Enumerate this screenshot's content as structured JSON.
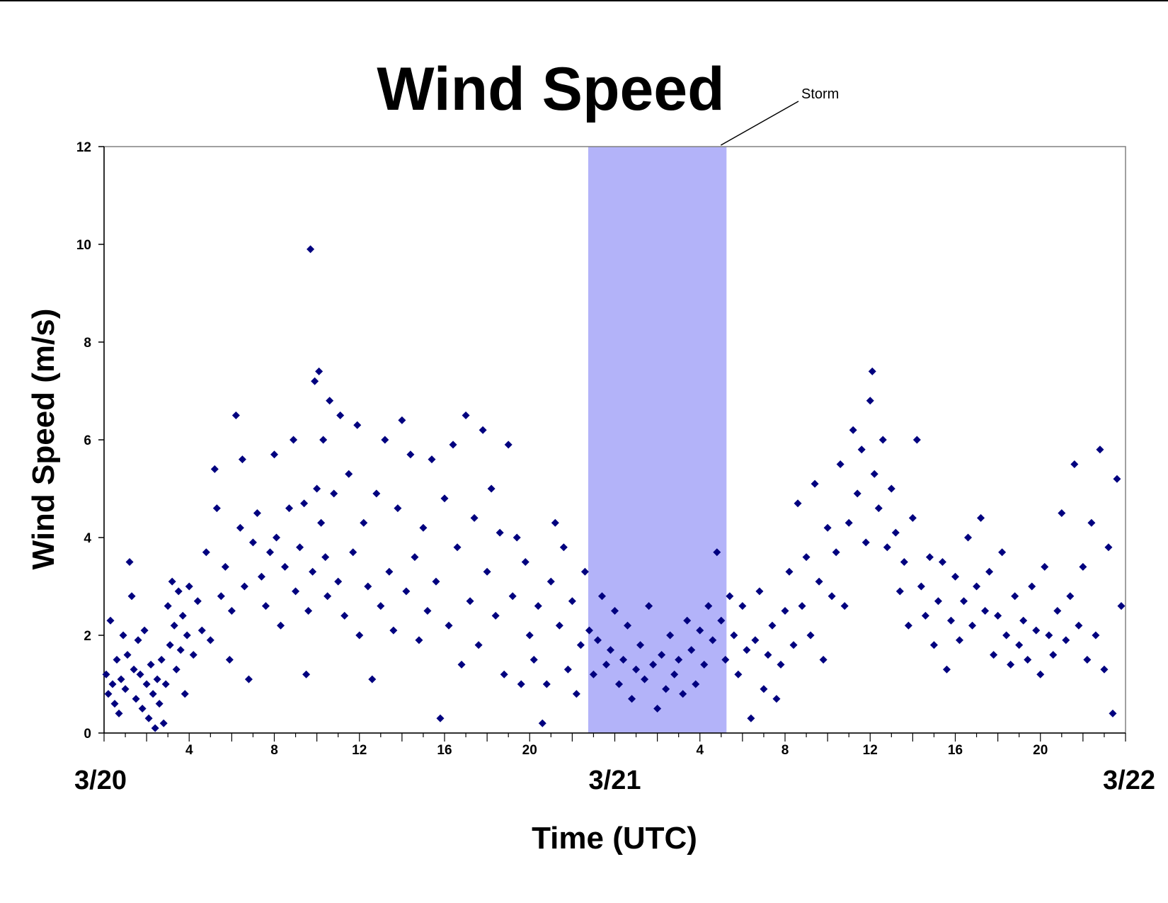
{
  "chart_data": {
    "type": "scatter",
    "title": "Wind Speed",
    "xlabel": "Time (UTC)",
    "ylabel": "Wind Speed (m/s)",
    "x_unit": "hours UTC",
    "x_range_hours": [
      0,
      48
    ],
    "ylim": [
      0,
      12
    ],
    "yticks": [
      "0",
      "2",
      "4",
      "6",
      "8",
      "10",
      "12"
    ],
    "xticks": [
      "4",
      "8",
      "12",
      "16",
      "20",
      "4",
      "8",
      "12",
      "16",
      "20"
    ],
    "date_labels": [
      "3/20",
      "3/21",
      "3/22"
    ],
    "grid": false,
    "legend": "none",
    "marker_color": "#00007f",
    "storm_band_color": "#b3b3f9",
    "annotation": {
      "text": "Storm",
      "x_start_hour": 22.75,
      "x_end_hour": 29.25
    },
    "series": [
      {
        "marker": "diamond",
        "points": [
          [
            0.1,
            1.2
          ],
          [
            0.2,
            0.8
          ],
          [
            0.3,
            2.3
          ],
          [
            0.4,
            1.0
          ],
          [
            0.5,
            0.6
          ],
          [
            0.6,
            1.5
          ],
          [
            0.7,
            0.4
          ],
          [
            0.8,
            1.1
          ],
          [
            0.9,
            2.0
          ],
          [
            1.0,
            0.9
          ],
          [
            1.1,
            1.6
          ],
          [
            1.2,
            3.5
          ],
          [
            1.3,
            2.8
          ],
          [
            1.4,
            1.3
          ],
          [
            1.5,
            0.7
          ],
          [
            1.6,
            1.9
          ],
          [
            1.7,
            1.2
          ],
          [
            1.8,
            0.5
          ],
          [
            1.9,
            2.1
          ],
          [
            2.0,
            1.0
          ],
          [
            2.1,
            0.3
          ],
          [
            2.2,
            1.4
          ],
          [
            2.3,
            0.8
          ],
          [
            2.4,
            0.1
          ],
          [
            2.5,
            1.1
          ],
          [
            2.6,
            0.6
          ],
          [
            2.7,
            1.5
          ],
          [
            2.8,
            0.2
          ],
          [
            2.9,
            1.0
          ],
          [
            3.0,
            2.6
          ],
          [
            3.1,
            1.8
          ],
          [
            3.2,
            3.1
          ],
          [
            3.3,
            2.2
          ],
          [
            3.4,
            1.3
          ],
          [
            3.5,
            2.9
          ],
          [
            3.6,
            1.7
          ],
          [
            3.7,
            2.4
          ],
          [
            3.8,
            0.8
          ],
          [
            3.9,
            2.0
          ],
          [
            4.0,
            3.0
          ],
          [
            4.2,
            1.6
          ],
          [
            4.4,
            2.7
          ],
          [
            4.6,
            2.1
          ],
          [
            4.8,
            3.7
          ],
          [
            5.0,
            1.9
          ],
          [
            5.2,
            5.4
          ],
          [
            5.3,
            4.6
          ],
          [
            5.5,
            2.8
          ],
          [
            5.7,
            3.4
          ],
          [
            5.9,
            1.5
          ],
          [
            6.0,
            2.5
          ],
          [
            6.2,
            6.5
          ],
          [
            6.4,
            4.2
          ],
          [
            6.5,
            5.6
          ],
          [
            6.6,
            3.0
          ],
          [
            6.8,
            1.1
          ],
          [
            7.0,
            3.9
          ],
          [
            7.2,
            4.5
          ],
          [
            7.4,
            3.2
          ],
          [
            7.6,
            2.6
          ],
          [
            7.8,
            3.7
          ],
          [
            8.0,
            5.7
          ],
          [
            8.1,
            4.0
          ],
          [
            8.3,
            2.2
          ],
          [
            8.5,
            3.4
          ],
          [
            8.7,
            4.6
          ],
          [
            8.9,
            6.0
          ],
          [
            9.0,
            2.9
          ],
          [
            9.2,
            3.8
          ],
          [
            9.4,
            4.7
          ],
          [
            9.5,
            1.2
          ],
          [
            9.6,
            2.5
          ],
          [
            9.7,
            9.9
          ],
          [
            9.8,
            3.3
          ],
          [
            9.9,
            7.2
          ],
          [
            10.0,
            5.0
          ],
          [
            10.1,
            7.4
          ],
          [
            10.2,
            4.3
          ],
          [
            10.3,
            6.0
          ],
          [
            10.4,
            3.6
          ],
          [
            10.5,
            2.8
          ],
          [
            10.6,
            6.8
          ],
          [
            10.8,
            4.9
          ],
          [
            11.0,
            3.1
          ],
          [
            11.1,
            6.5
          ],
          [
            11.3,
            2.4
          ],
          [
            11.5,
            5.3
          ],
          [
            11.7,
            3.7
          ],
          [
            11.9,
            6.3
          ],
          [
            12.0,
            2.0
          ],
          [
            12.2,
            4.3
          ],
          [
            12.4,
            3.0
          ],
          [
            12.6,
            1.1
          ],
          [
            12.8,
            4.9
          ],
          [
            13.0,
            2.6
          ],
          [
            13.2,
            6.0
          ],
          [
            13.4,
            3.3
          ],
          [
            13.6,
            2.1
          ],
          [
            13.8,
            4.6
          ],
          [
            14.0,
            6.4
          ],
          [
            14.2,
            2.9
          ],
          [
            14.4,
            5.7
          ],
          [
            14.6,
            3.6
          ],
          [
            14.8,
            1.9
          ],
          [
            15.0,
            4.2
          ],
          [
            15.2,
            2.5
          ],
          [
            15.4,
            5.6
          ],
          [
            15.6,
            3.1
          ],
          [
            15.8,
            0.3
          ],
          [
            16.0,
            4.8
          ],
          [
            16.2,
            2.2
          ],
          [
            16.4,
            5.9
          ],
          [
            16.6,
            3.8
          ],
          [
            16.8,
            1.4
          ],
          [
            17.0,
            6.5
          ],
          [
            17.2,
            2.7
          ],
          [
            17.4,
            4.4
          ],
          [
            17.6,
            1.8
          ],
          [
            17.8,
            6.2
          ],
          [
            18.0,
            3.3
          ],
          [
            18.2,
            5.0
          ],
          [
            18.4,
            2.4
          ],
          [
            18.6,
            4.1
          ],
          [
            18.8,
            1.2
          ],
          [
            19.0,
            5.9
          ],
          [
            19.2,
            2.8
          ],
          [
            19.4,
            4.0
          ],
          [
            19.6,
            1.0
          ],
          [
            19.8,
            3.5
          ],
          [
            20.0,
            2.0
          ],
          [
            20.2,
            1.5
          ],
          [
            20.4,
            2.6
          ],
          [
            20.6,
            0.2
          ],
          [
            20.8,
            1.0
          ],
          [
            21.0,
            3.1
          ],
          [
            21.2,
            4.3
          ],
          [
            21.4,
            2.2
          ],
          [
            21.6,
            3.8
          ],
          [
            21.8,
            1.3
          ],
          [
            22.0,
            2.7
          ],
          [
            22.2,
            0.8
          ],
          [
            22.4,
            1.8
          ],
          [
            22.6,
            3.3
          ],
          [
            22.8,
            2.1
          ],
          [
            23.0,
            1.2
          ],
          [
            23.2,
            1.9
          ],
          [
            23.4,
            2.8
          ],
          [
            23.6,
            1.4
          ],
          [
            23.8,
            1.7
          ],
          [
            24.0,
            2.5
          ],
          [
            24.2,
            1.0
          ],
          [
            24.4,
            1.5
          ],
          [
            24.6,
            2.2
          ],
          [
            24.8,
            0.7
          ],
          [
            25.0,
            1.3
          ],
          [
            25.2,
            1.8
          ],
          [
            25.4,
            1.1
          ],
          [
            25.6,
            2.6
          ],
          [
            25.8,
            1.4
          ],
          [
            26.0,
            0.5
          ],
          [
            26.2,
            1.6
          ],
          [
            26.4,
            0.9
          ],
          [
            26.6,
            2.0
          ],
          [
            26.8,
            1.2
          ],
          [
            27.0,
            1.5
          ],
          [
            27.2,
            0.8
          ],
          [
            27.4,
            2.3
          ],
          [
            27.6,
            1.7
          ],
          [
            27.8,
            1.0
          ],
          [
            28.0,
            2.1
          ],
          [
            28.2,
            1.4
          ],
          [
            28.4,
            2.6
          ],
          [
            28.6,
            1.9
          ],
          [
            28.8,
            3.7
          ],
          [
            29.0,
            2.3
          ],
          [
            29.2,
            1.5
          ],
          [
            29.4,
            2.8
          ],
          [
            29.6,
            2.0
          ],
          [
            29.8,
            1.2
          ],
          [
            30.0,
            2.6
          ],
          [
            30.2,
            1.7
          ],
          [
            30.4,
            0.3
          ],
          [
            30.6,
            1.9
          ],
          [
            30.8,
            2.9
          ],
          [
            31.0,
            0.9
          ],
          [
            31.2,
            1.6
          ],
          [
            31.4,
            2.2
          ],
          [
            31.6,
            0.7
          ],
          [
            31.8,
            1.4
          ],
          [
            32.0,
            2.5
          ],
          [
            32.2,
            3.3
          ],
          [
            32.4,
            1.8
          ],
          [
            32.6,
            4.7
          ],
          [
            32.8,
            2.6
          ],
          [
            33.0,
            3.6
          ],
          [
            33.2,
            2.0
          ],
          [
            33.4,
            5.1
          ],
          [
            33.6,
            3.1
          ],
          [
            33.8,
            1.5
          ],
          [
            34.0,
            4.2
          ],
          [
            34.2,
            2.8
          ],
          [
            34.4,
            3.7
          ],
          [
            34.6,
            5.5
          ],
          [
            34.8,
            2.6
          ],
          [
            35.0,
            4.3
          ],
          [
            35.2,
            6.2
          ],
          [
            35.4,
            4.9
          ],
          [
            35.6,
            5.8
          ],
          [
            35.8,
            3.9
          ],
          [
            36.0,
            6.8
          ],
          [
            36.1,
            7.4
          ],
          [
            36.2,
            5.3
          ],
          [
            36.4,
            4.6
          ],
          [
            36.6,
            6.0
          ],
          [
            36.8,
            3.8
          ],
          [
            37.0,
            5.0
          ],
          [
            37.2,
            4.1
          ],
          [
            37.4,
            2.9
          ],
          [
            37.6,
            3.5
          ],
          [
            37.8,
            2.2
          ],
          [
            38.0,
            4.4
          ],
          [
            38.2,
            6.0
          ],
          [
            38.4,
            3.0
          ],
          [
            38.6,
            2.4
          ],
          [
            38.8,
            3.6
          ],
          [
            39.0,
            1.8
          ],
          [
            39.2,
            2.7
          ],
          [
            39.4,
            3.5
          ],
          [
            39.6,
            1.3
          ],
          [
            39.8,
            2.3
          ],
          [
            40.0,
            3.2
          ],
          [
            40.2,
            1.9
          ],
          [
            40.4,
            2.7
          ],
          [
            40.6,
            4.0
          ],
          [
            40.8,
            2.2
          ],
          [
            41.0,
            3.0
          ],
          [
            41.2,
            4.4
          ],
          [
            41.4,
            2.5
          ],
          [
            41.6,
            3.3
          ],
          [
            41.8,
            1.6
          ],
          [
            42.0,
            2.4
          ],
          [
            42.2,
            3.7
          ],
          [
            42.4,
            2.0
          ],
          [
            42.6,
            1.4
          ],
          [
            42.8,
            2.8
          ],
          [
            43.0,
            1.8
          ],
          [
            43.2,
            2.3
          ],
          [
            43.4,
            1.5
          ],
          [
            43.6,
            3.0
          ],
          [
            43.8,
            2.1
          ],
          [
            44.0,
            1.2
          ],
          [
            44.2,
            3.4
          ],
          [
            44.4,
            2.0
          ],
          [
            44.6,
            1.6
          ],
          [
            44.8,
            2.5
          ],
          [
            45.0,
            4.5
          ],
          [
            45.2,
            1.9
          ],
          [
            45.4,
            2.8
          ],
          [
            45.6,
            5.5
          ],
          [
            45.8,
            2.2
          ],
          [
            46.0,
            3.4
          ],
          [
            46.2,
            1.5
          ],
          [
            46.4,
            4.3
          ],
          [
            46.6,
            2.0
          ],
          [
            46.8,
            5.8
          ],
          [
            47.0,
            1.3
          ],
          [
            47.2,
            3.8
          ],
          [
            47.4,
            0.4
          ],
          [
            47.6,
            5.2
          ],
          [
            47.8,
            2.6
          ]
        ]
      }
    ]
  }
}
